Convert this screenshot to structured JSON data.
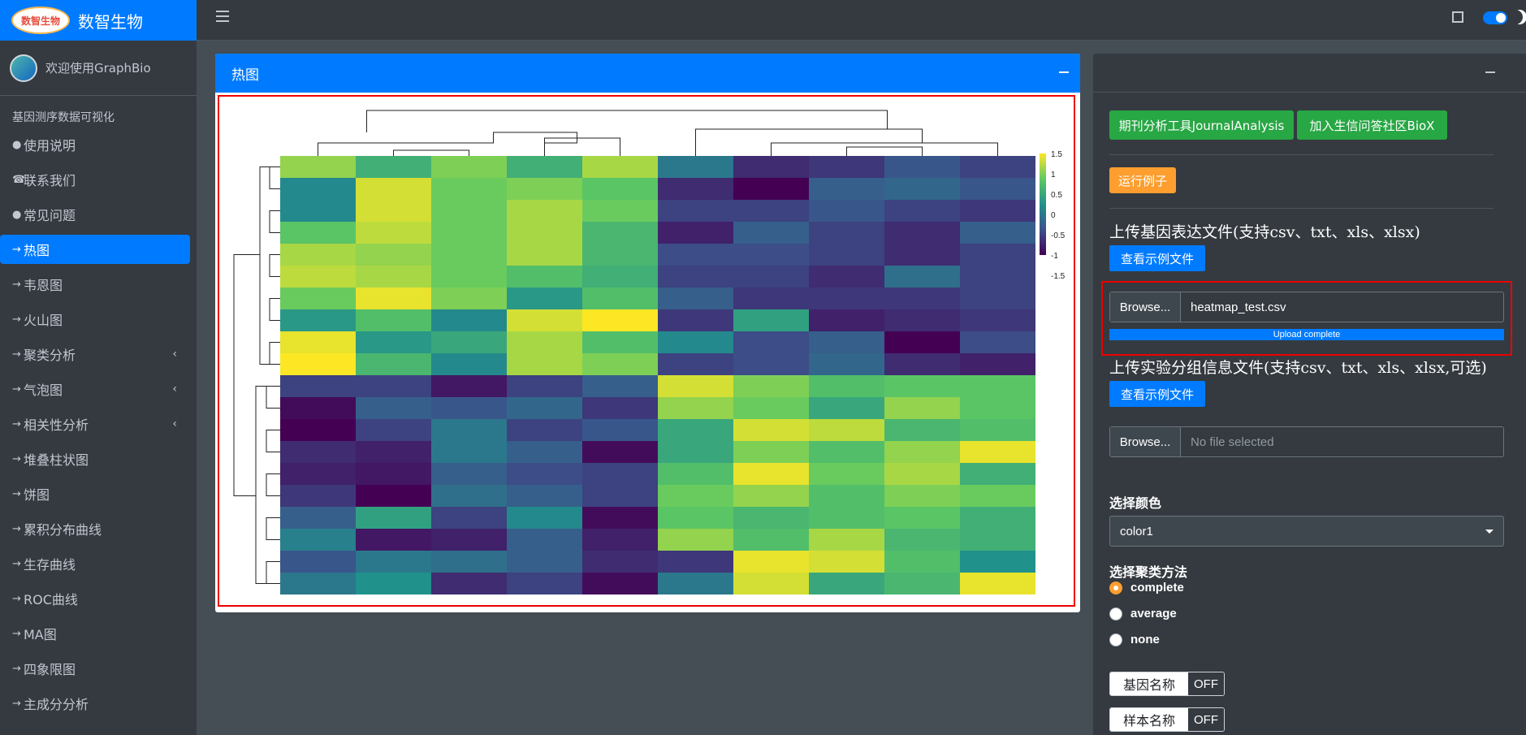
{
  "brand": {
    "logo_text": "数智生物",
    "title": "数智生物"
  },
  "sidebar": {
    "user_name": "欢迎使用GraphBio",
    "section_header": "基因测序数据可视化",
    "items": [
      {
        "label": "使用说明",
        "icon": "info-icon"
      },
      {
        "label": "联系我们",
        "icon": "phone-icon"
      },
      {
        "label": "常见问题",
        "icon": "question-icon"
      },
      {
        "label": "热图",
        "icon": "arrow-icon",
        "active": true
      },
      {
        "label": "韦恩图",
        "icon": "arrow-icon"
      },
      {
        "label": "火山图",
        "icon": "arrow-icon"
      },
      {
        "label": "聚类分析",
        "icon": "arrow-icon",
        "submenu": true
      },
      {
        "label": "气泡图",
        "icon": "arrow-icon",
        "submenu": true
      },
      {
        "label": "相关性分析",
        "icon": "arrow-icon",
        "submenu": true
      },
      {
        "label": "堆叠柱状图",
        "icon": "arrow-icon"
      },
      {
        "label": "饼图",
        "icon": "arrow-icon"
      },
      {
        "label": "累积分布曲线",
        "icon": "arrow-icon"
      },
      {
        "label": "生存曲线",
        "icon": "arrow-icon"
      },
      {
        "label": "ROC曲线",
        "icon": "arrow-icon"
      },
      {
        "label": "MA图",
        "icon": "arrow-icon"
      },
      {
        "label": "四象限图",
        "icon": "arrow-icon"
      },
      {
        "label": "主成分分析",
        "icon": "arrow-icon"
      }
    ]
  },
  "heatmap_card": {
    "title": "热图"
  },
  "chart_data": {
    "type": "heatmap",
    "rows": 20,
    "cols": 10,
    "colorscale": [
      "#440154",
      "#3b528b",
      "#21918c",
      "#5ec962",
      "#fde725"
    ],
    "legend_ticks": [
      "1.5",
      "1",
      "0.5",
      "0",
      "-0.5",
      "-1",
      "-1.5"
    ],
    "vmin": -1.5,
    "vmax": 1.5,
    "values": [
      [
        1.0,
        0.4,
        0.9,
        0.4,
        1.1,
        -0.3,
        -1.1,
        -1.0,
        -0.7,
        -0.9
      ],
      [
        -0.1,
        1.3,
        0.8,
        0.9,
        0.7,
        -1.1,
        -1.5,
        -0.6,
        -0.5,
        -0.7
      ],
      [
        -0.1,
        1.3,
        0.8,
        1.1,
        0.8,
        -0.9,
        -0.9,
        -0.7,
        -0.9,
        -1.0
      ],
      [
        0.7,
        1.2,
        0.8,
        1.1,
        0.5,
        -1.2,
        -0.6,
        -0.9,
        -1.1,
        -0.6
      ],
      [
        1.1,
        1.0,
        0.8,
        1.1,
        0.5,
        -0.8,
        -0.8,
        -0.9,
        -1.1,
        -0.9
      ],
      [
        1.2,
        1.1,
        0.8,
        0.6,
        0.4,
        -0.9,
        -0.9,
        -1.1,
        -0.4,
        -0.9
      ],
      [
        0.8,
        1.4,
        0.9,
        0.1,
        0.6,
        -0.6,
        -1.0,
        -1.0,
        -1.0,
        -0.9
      ],
      [
        0.1,
        0.6,
        -0.1,
        1.3,
        1.5,
        -1.0,
        0.2,
        -1.2,
        -1.1,
        -1.0
      ],
      [
        1.4,
        0.1,
        0.3,
        1.1,
        0.6,
        -0.1,
        -0.8,
        -0.6,
        -1.5,
        -0.8
      ],
      [
        1.5,
        0.5,
        -0.1,
        1.1,
        0.9,
        -0.9,
        -0.8,
        -0.5,
        -1.1,
        -1.2
      ],
      [
        -0.9,
        -0.9,
        -1.3,
        -0.9,
        -0.6,
        1.3,
        0.9,
        0.6,
        0.7,
        0.7
      ],
      [
        -1.4,
        -0.6,
        -0.7,
        -0.5,
        -1.0,
        1.0,
        0.8,
        0.3,
        1.0,
        0.7
      ],
      [
        -1.5,
        -0.9,
        -0.3,
        -0.9,
        -0.7,
        0.3,
        1.3,
        1.2,
        0.5,
        0.6
      ],
      [
        -1.1,
        -1.2,
        -0.3,
        -0.6,
        -1.4,
        0.3,
        0.9,
        0.6,
        1.0,
        1.4
      ],
      [
        -1.2,
        -1.3,
        -0.6,
        -0.8,
        -0.9,
        0.6,
        1.4,
        0.8,
        1.1,
        0.4
      ],
      [
        -1.0,
        -1.5,
        -0.4,
        -0.6,
        -0.9,
        0.8,
        1.0,
        0.6,
        0.9,
        0.8
      ],
      [
        -0.6,
        0.2,
        -0.9,
        -0.1,
        -1.4,
        0.7,
        0.5,
        0.6,
        0.7,
        0.4
      ],
      [
        -0.2,
        -1.3,
        -1.2,
        -0.6,
        -1.2,
        1.0,
        0.6,
        1.1,
        0.5,
        0.4
      ],
      [
        -0.7,
        -0.3,
        -0.4,
        -0.6,
        -1.1,
        -1.0,
        1.4,
        1.3,
        0.6,
        0.0
      ],
      [
        -0.3,
        0.0,
        -1.1,
        -0.9,
        -1.4,
        -0.3,
        1.3,
        0.3,
        0.5,
        1.4
      ]
    ]
  },
  "right_panel": {
    "btn_journal": "期刊分析工具JournalAnalysis",
    "btn_biox": "加入生信问答社区BioX",
    "btn_example": "运行例子",
    "upload_expr_title": "上传基因表达文件(支持csv、txt、xls、xlsx)",
    "view_example_1": "查看示例文件",
    "browse_1": "Browse...",
    "file_1": "heatmap_test.csv",
    "upload_status": "Upload complete",
    "upload_progress": 1.0,
    "upload_group_title": "上传实验分组信息文件(支持csv、txt、xls、xlsx,可选)",
    "view_example_2": "查看示例文件",
    "browse_2": "Browse...",
    "file_2_placeholder": "No file selected",
    "color_label": "选择颜色",
    "color_value": "color1",
    "cluster_label": "选择聚类方法",
    "cluster_options": [
      "complete",
      "average",
      "none"
    ],
    "cluster_selected": "complete",
    "gene_name_label": "基因名称",
    "gene_name_state": "OFF",
    "sample_name_label": "样本名称",
    "sample_name_state": "OFF"
  }
}
